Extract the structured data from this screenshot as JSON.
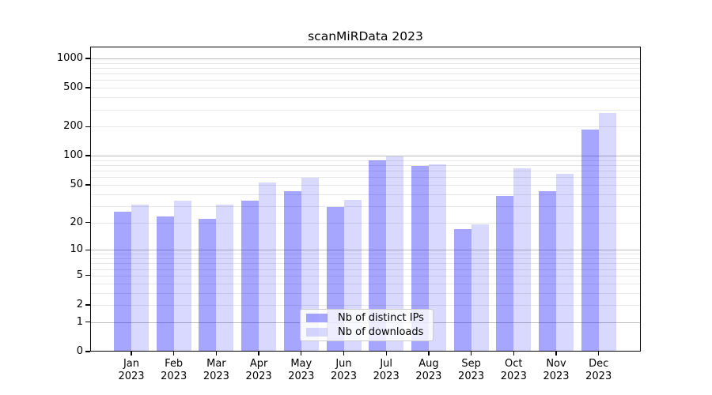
{
  "title": "scanMiRData 2023",
  "colors": {
    "bar_distinct_ips": "#0000ff59",
    "bar_downloads": "#0000ff26",
    "grid_major": "#bdbdbd",
    "grid_minor": "#e7e7e7",
    "axis_line": "#000000",
    "legend_border": "#cccccc"
  },
  "legend": {
    "entries": [
      "Nb of distinct IPs",
      "Nb of downloads"
    ]
  },
  "chart_data": {
    "type": "bar",
    "title": "scanMiRData 2023",
    "xlabel": "",
    "ylabel": "",
    "yscale": "log1p",
    "ylim": [
      0,
      1300
    ],
    "grid": true,
    "legend_position": "lower center",
    "categories": [
      "Jan 2023",
      "Feb 2023",
      "Mar 2023",
      "Apr 2023",
      "May 2023",
      "Jun 2023",
      "Jul 2023",
      "Aug 2023",
      "Sep 2023",
      "Oct 2023",
      "Nov 2023",
      "Dec 2023"
    ],
    "y_ticks": [
      0,
      1,
      2,
      5,
      10,
      20,
      50,
      100,
      200,
      500,
      1000
    ],
    "y_tick_labels": [
      "0",
      "1",
      "2",
      "5",
      "10",
      "20",
      "50",
      "100",
      "200",
      "500",
      "1000"
    ],
    "grid_major_values": [
      1,
      10,
      100,
      1000
    ],
    "grid_minor_values": [
      2,
      3,
      4,
      5,
      6,
      7,
      8,
      9,
      20,
      30,
      40,
      50,
      60,
      70,
      80,
      90,
      200,
      300,
      400,
      500,
      600,
      700,
      800,
      900
    ],
    "series": [
      {
        "name": "Nb of distinct IPs",
        "color": "#0000ff59",
        "values": [
          26,
          23,
          22,
          34,
          43,
          29,
          89,
          79,
          17,
          38,
          43,
          188
        ]
      },
      {
        "name": "Nb of downloads",
        "color": "#0000ff26",
        "values": [
          31,
          34,
          31,
          53,
          59,
          35,
          98,
          81,
          19,
          74,
          65,
          274
        ]
      }
    ]
  }
}
